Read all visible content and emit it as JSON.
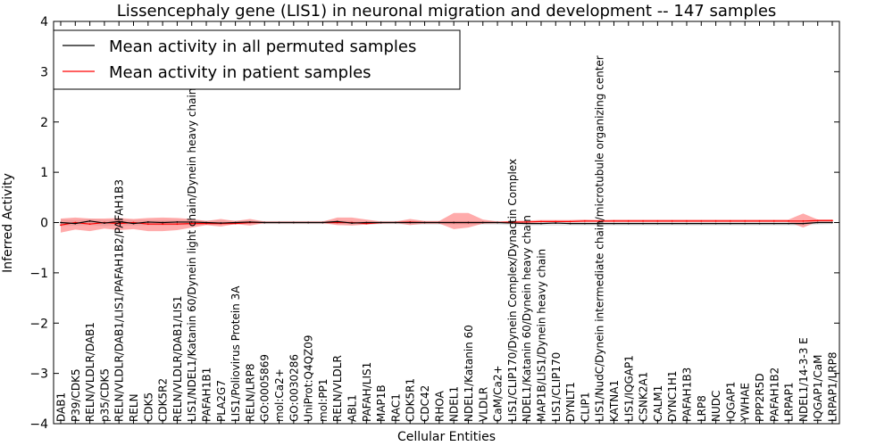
{
  "chart_data": {
    "type": "line",
    "title": "Lissencephaly gene (LIS1) in neuronal migration and development -- 147 samples",
    "xlabel": "Cellular Entities",
    "ylabel": "Inferred Activity",
    "ylim": [
      -4,
      4
    ],
    "yticks": [
      -4,
      -3,
      -2,
      -1,
      0,
      1,
      2,
      3,
      4
    ],
    "ytick_labels": [
      "−4",
      "−3",
      "−2",
      "−1",
      "0",
      "1",
      "2",
      "3",
      "4"
    ],
    "grid": false,
    "legend_position": "top-left",
    "colors": {
      "permuted_line": "#000000",
      "permuted_band": "#bfbfbf",
      "patient_line": "#ff0000",
      "patient_band": "#ff6666"
    },
    "categories": [
      "DAB1",
      "P39/CDK5",
      "RELN/VLDLR/DAB1",
      "p35/CDK5",
      "RELN/VLDLR/DAB1/LIS1/PAFAH1B2/PAFAH1B3",
      "RELN",
      "CDK5",
      "CDK5R2",
      "RELN/VLDLR/DAB1/LIS1",
      "LIS1/NDEL1/Katanin 60/Dynein light chain/Dynein heavy chain",
      "PAFAH1B1",
      "PLA2G7",
      "LIS1/Poliovirus Protein 3A",
      "RELN/LRP8",
      "GO:0005869",
      "mol:Ca2+",
      "GO:0030286",
      "UniProt:Q4QZ09",
      "mol:PP1",
      "RELN/VLDLR",
      "ABL1",
      "PAFAH/LIS1",
      "MAP1B",
      "RAC1",
      "CDK5R1",
      "CDC42",
      "RHOA",
      "NDEL1",
      "NDEL1/Katanin 60",
      "VLDLR",
      "CaM/Ca2+",
      "LIS1/CLIP170/Dynein Complex/Dynactin Complex",
      "NDEL1/Katanin 60/Dynein heavy chain",
      "MAP1B/LIS1/Dynein heavy chain",
      "LIS1/CLIP170",
      "DYNLT1",
      "CLIP1",
      "LIS1/NudC/Dynein intermediate chain/microtubule organizing center",
      "KATNA1",
      "LIS1/IQGAP1",
      "CSNK2A1",
      "CALM1",
      "DYNC1H1",
      "PAFAH1B3",
      "LRP8",
      "NUDC",
      "IQGAP1",
      "YWHAE",
      "PPP2R5D",
      "PAFAH1B2",
      "LRPAP1",
      "NDEL1/14-3-3 E",
      "IQGAP1/CaM",
      "LRPAP1/LRP8"
    ],
    "series": [
      {
        "name": "Mean activity in all permuted samples",
        "values": [
          0.0,
          -0.02,
          0.03,
          -0.01,
          0.02,
          -0.02,
          0.01,
          0.0,
          0.01,
          0.01,
          0.0,
          -0.01,
          0.0,
          0.01,
          0.0,
          0.0,
          0.0,
          0.0,
          0.0,
          0.02,
          -0.01,
          0.0,
          0.0,
          0.0,
          0.0,
          0.0,
          0.0,
          0.0,
          0.0,
          0.0,
          0.0,
          -0.01,
          -0.02,
          -0.02,
          -0.01,
          -0.02,
          -0.02,
          -0.02,
          -0.02,
          -0.02,
          -0.02,
          -0.02,
          -0.02,
          -0.02,
          -0.02,
          -0.02,
          -0.02,
          -0.02,
          -0.02,
          -0.02,
          -0.02,
          -0.02,
          0.0,
          0.0
        ],
        "band_low": [
          -0.07,
          -0.06,
          -0.05,
          -0.07,
          -0.06,
          -0.06,
          -0.05,
          -0.06,
          -0.05,
          -0.05,
          -0.04,
          -0.04,
          -0.03,
          -0.03,
          -0.03,
          -0.03,
          -0.03,
          -0.03,
          -0.03,
          -0.03,
          -0.04,
          -0.04,
          -0.03,
          -0.03,
          -0.04,
          -0.04,
          -0.04,
          -0.04,
          -0.04,
          -0.04,
          -0.04,
          -0.05,
          -0.06,
          -0.06,
          -0.06,
          -0.06,
          -0.06,
          -0.06,
          -0.06,
          -0.06,
          -0.06,
          -0.06,
          -0.06,
          -0.06,
          -0.06,
          -0.06,
          -0.06,
          -0.06,
          -0.06,
          -0.06,
          -0.06,
          -0.06,
          -0.04,
          -0.03
        ],
        "band_high": [
          0.06,
          0.05,
          0.07,
          0.05,
          0.06,
          0.05,
          0.05,
          0.05,
          0.05,
          0.05,
          0.04,
          0.04,
          0.04,
          0.04,
          0.03,
          0.03,
          0.03,
          0.03,
          0.03,
          0.05,
          0.03,
          0.03,
          0.03,
          0.03,
          0.03,
          0.03,
          0.03,
          0.03,
          0.03,
          0.03,
          0.03,
          0.02,
          0.01,
          0.01,
          0.01,
          0.01,
          0.01,
          0.01,
          0.01,
          0.01,
          0.01,
          0.01,
          0.01,
          0.01,
          0.01,
          0.01,
          0.01,
          0.01,
          0.01,
          0.01,
          0.01,
          0.01,
          0.04,
          0.04
        ]
      },
      {
        "name": "Mean activity in patient samples",
        "values": [
          -0.05,
          0.0,
          -0.03,
          0.0,
          -0.02,
          0.0,
          -0.03,
          -0.03,
          -0.03,
          -0.02,
          -0.02,
          -0.02,
          -0.02,
          0.0,
          0.0,
          0.0,
          0.0,
          0.0,
          0.0,
          0.0,
          0.0,
          -0.02,
          0.0,
          0.0,
          0.01,
          0.0,
          0.0,
          0.0,
          0.0,
          0.0,
          0.0,
          0.01,
          0.01,
          0.02,
          0.02,
          0.02,
          0.03,
          0.03,
          0.03,
          0.03,
          0.03,
          0.03,
          0.03,
          0.03,
          0.03,
          0.03,
          0.03,
          0.03,
          0.03,
          0.03,
          0.03,
          0.03,
          0.04,
          0.04
        ],
        "band_low": [
          -0.2,
          -0.14,
          -0.17,
          -0.12,
          -0.15,
          -0.13,
          -0.17,
          -0.17,
          -0.15,
          -0.1,
          -0.05,
          -0.08,
          -0.03,
          -0.06,
          -0.01,
          -0.01,
          -0.01,
          -0.01,
          -0.01,
          -0.05,
          -0.06,
          -0.04,
          -0.02,
          -0.01,
          -0.05,
          -0.02,
          -0.02,
          -0.13,
          -0.1,
          -0.02,
          -0.01,
          0.0,
          0.0,
          0.01,
          0.01,
          0.01,
          0.01,
          0.01,
          0.01,
          0.01,
          0.01,
          0.01,
          0.01,
          0.01,
          0.01,
          0.01,
          0.01,
          0.01,
          0.01,
          0.01,
          0.01,
          -0.1,
          0.02,
          0.02
        ],
        "band_high": [
          0.08,
          0.1,
          0.08,
          0.08,
          0.09,
          0.07,
          0.09,
          0.1,
          0.09,
          0.07,
          0.03,
          0.07,
          0.03,
          0.07,
          0.02,
          0.02,
          0.02,
          0.02,
          0.02,
          0.1,
          0.1,
          0.06,
          0.02,
          0.02,
          0.07,
          0.03,
          0.03,
          0.19,
          0.19,
          0.06,
          0.02,
          0.03,
          0.04,
          0.05,
          0.05,
          0.05,
          0.06,
          0.05,
          0.06,
          0.06,
          0.06,
          0.06,
          0.06,
          0.06,
          0.06,
          0.06,
          0.06,
          0.06,
          0.06,
          0.06,
          0.06,
          0.18,
          0.06,
          0.06
        ]
      }
    ]
  }
}
